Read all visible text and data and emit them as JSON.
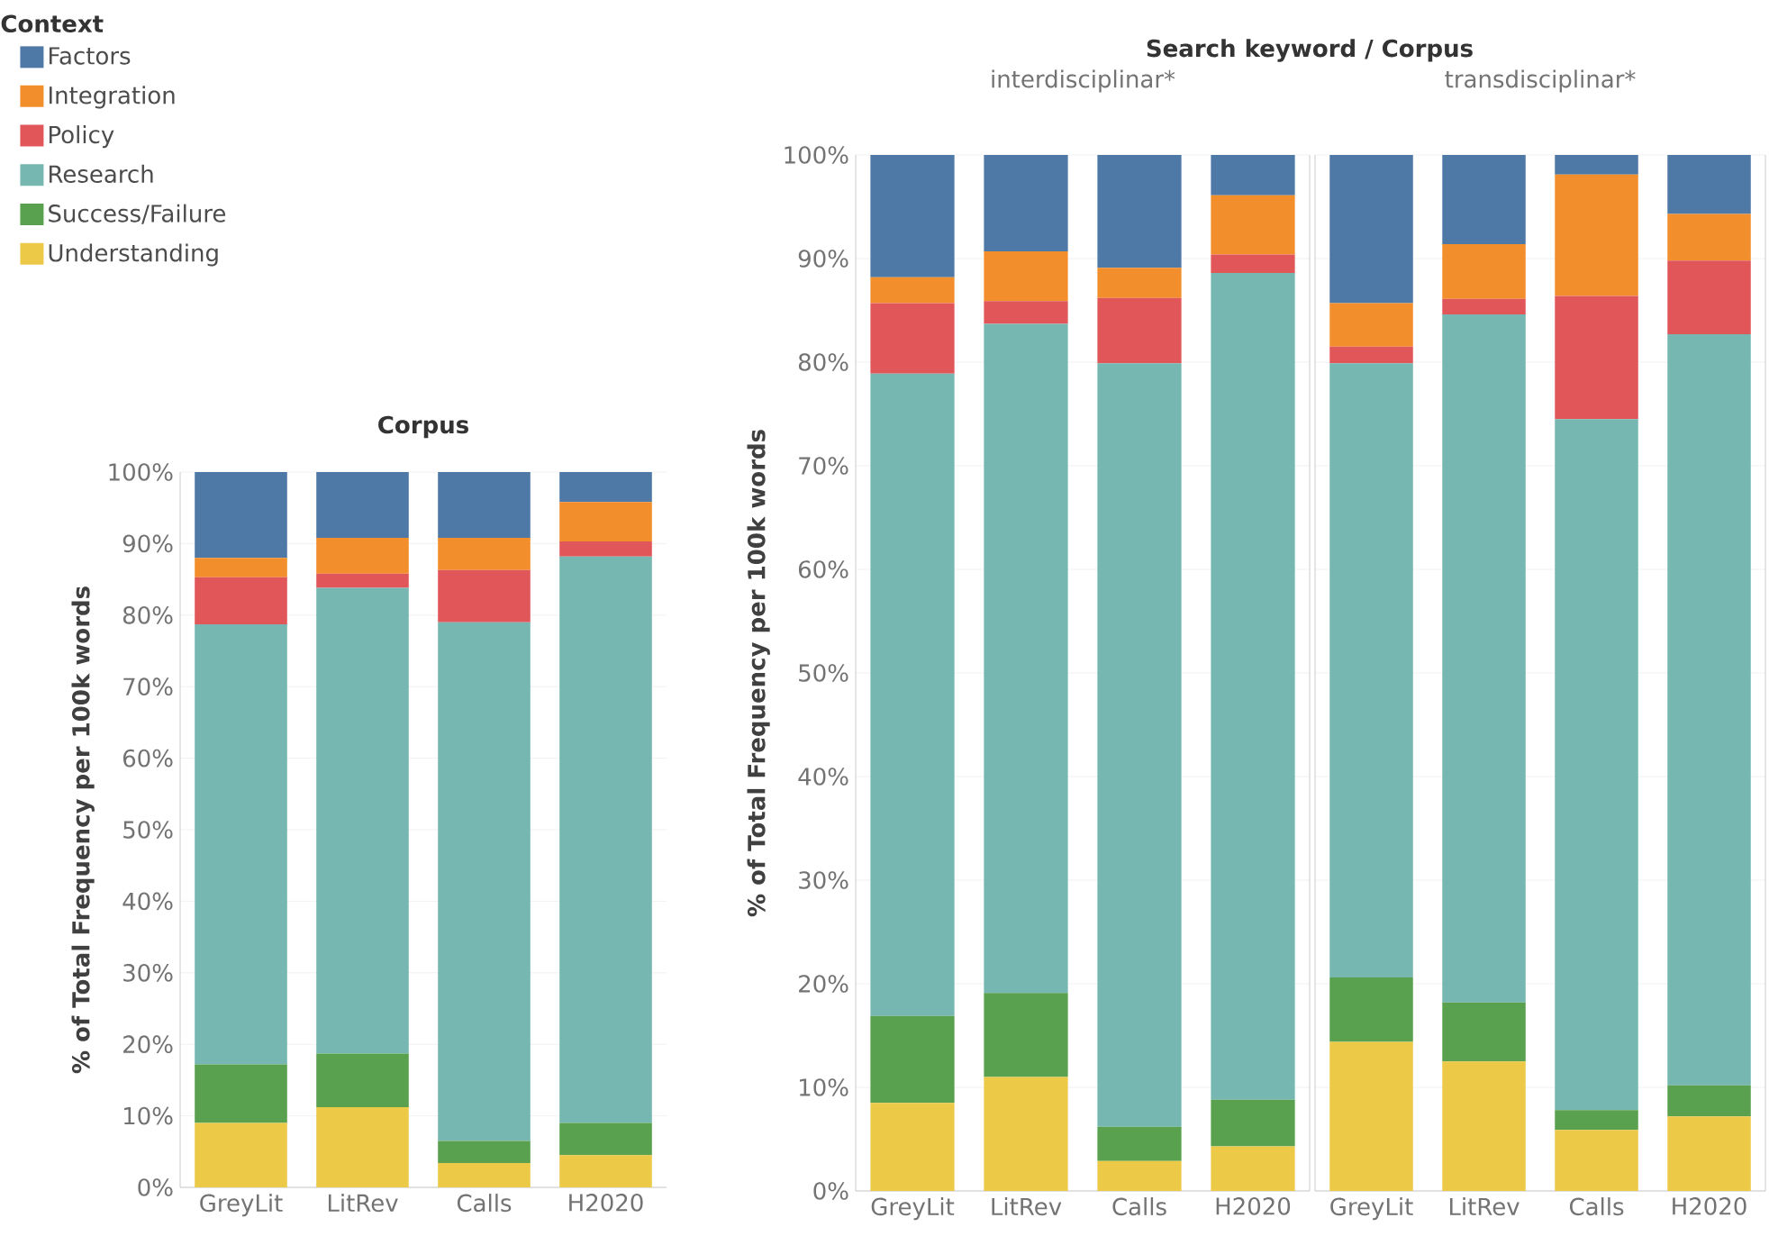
{
  "chart_data": [
    {
      "type": "bar",
      "stacked": true,
      "title": "Corpus",
      "ylabel": "% of Total Frequency per 100k words",
      "legend_title": "Context",
      "legend": "top left",
      "grid": "y",
      "categories": [
        "GreyLit",
        "LitRev",
        "Calls",
        "H2020"
      ],
      "ylim": [
        0,
        100
      ],
      "yticks": [
        {
          "value": 0,
          "label": "0%"
        },
        {
          "value": 10,
          "label": "10%"
        },
        {
          "value": 20,
          "label": "20%"
        },
        {
          "value": 30,
          "label": "30%"
        },
        {
          "value": 40,
          "label": "40%"
        },
        {
          "value": 50,
          "label": "50%"
        },
        {
          "value": 60,
          "label": "60%"
        },
        {
          "value": 70,
          "label": "70%"
        },
        {
          "value": 80,
          "label": "80%"
        },
        {
          "value": 90,
          "label": "90%"
        },
        {
          "value": 100,
          "label": "100%"
        }
      ],
      "series": [
        {
          "name": "Understanding",
          "color": "#edc948",
          "values": [
            9.0,
            11.2,
            3.4,
            4.5
          ]
        },
        {
          "name": "Success/Failure",
          "color": "#59a14f",
          "values": [
            8.2,
            7.5,
            3.1,
            4.5
          ]
        },
        {
          "name": "Research",
          "color": "#76b7b2",
          "values": [
            61.5,
            65.1,
            72.5,
            79.2
          ]
        },
        {
          "name": "Policy",
          "color": "#e15759",
          "values": [
            6.6,
            2.0,
            7.3,
            2.1
          ]
        },
        {
          "name": "Integration",
          "color": "#f28e2b",
          "values": [
            2.7,
            5.0,
            4.5,
            5.5
          ]
        },
        {
          "name": "Factors",
          "color": "#4e79a7",
          "values": [
            12.0,
            9.2,
            9.2,
            4.2
          ]
        }
      ]
    },
    {
      "type": "bar",
      "stacked": true,
      "title": "Search keyword / Corpus",
      "subtitle": "interdisciplinar*",
      "ylabel": "% of Total Frequency per 100k words",
      "grid": "y",
      "categories": [
        "GreyLit",
        "LitRev",
        "Calls",
        "H2020"
      ],
      "ylim": [
        0,
        100
      ],
      "yticks": [
        {
          "value": 0,
          "label": "0%"
        },
        {
          "value": 10,
          "label": "10%"
        },
        {
          "value": 20,
          "label": "20%"
        },
        {
          "value": 30,
          "label": "30%"
        },
        {
          "value": 40,
          "label": "40%"
        },
        {
          "value": 50,
          "label": "50%"
        },
        {
          "value": 60,
          "label": "60%"
        },
        {
          "value": 70,
          "label": "70%"
        },
        {
          "value": 80,
          "label": "80%"
        },
        {
          "value": 90,
          "label": "90%"
        },
        {
          "value": 100,
          "label": "100%"
        }
      ],
      "series": [
        {
          "color": "#edc948",
          "values": [
            8.5,
            11.0,
            2.9,
            4.3
          ]
        },
        {
          "color": "#59a14f",
          "values": [
            8.4,
            8.1,
            3.3,
            4.5
          ]
        },
        {
          "color": "#76b7b2",
          "values": [
            62.0,
            64.6,
            73.7,
            79.8
          ]
        },
        {
          "color": "#e15759",
          "values": [
            6.8,
            2.2,
            6.3,
            1.8
          ]
        },
        {
          "color": "#f28e2b",
          "values": [
            2.5,
            4.8,
            2.9,
            5.7
          ]
        },
        {
          "color": "#4e79a7",
          "values": [
            11.8,
            9.3,
            10.9,
            3.9
          ]
        }
      ]
    },
    {
      "type": "bar",
      "stacked": true,
      "subtitle": "transdisciplinar*",
      "grid": "y",
      "tick_labels": "x",
      "categories": [
        "GreyLit",
        "LitRev",
        "Calls",
        "H2020"
      ],
      "ylim": [
        0,
        100
      ],
      "yticks": [
        {
          "value": 0,
          "label": null
        },
        {
          "value": 10,
          "label": null
        },
        {
          "value": 20,
          "label": null
        },
        {
          "value": 30,
          "label": null
        },
        {
          "value": 40,
          "label": null
        },
        {
          "value": 50,
          "label": null
        },
        {
          "value": 60,
          "label": null
        },
        {
          "value": 70,
          "label": null
        },
        {
          "value": 80,
          "label": null
        },
        {
          "value": 90,
          "label": null
        },
        {
          "value": 100,
          "label": null
        }
      ],
      "series": [
        {
          "color": "#edc948",
          "values": [
            14.4,
            12.5,
            5.9,
            7.2
          ]
        },
        {
          "color": "#59a14f",
          "values": [
            6.2,
            5.7,
            1.9,
            3.0
          ]
        },
        {
          "color": "#76b7b2",
          "values": [
            59.3,
            66.4,
            66.7,
            72.5
          ]
        },
        {
          "color": "#e15759",
          "values": [
            1.6,
            1.5,
            11.9,
            7.1
          ]
        },
        {
          "color": "#f28e2b",
          "values": [
            4.2,
            5.3,
            11.7,
            4.5
          ]
        },
        {
          "color": "#4e79a7",
          "values": [
            14.3,
            8.6,
            1.9,
            5.7
          ]
        }
      ]
    }
  ]
}
